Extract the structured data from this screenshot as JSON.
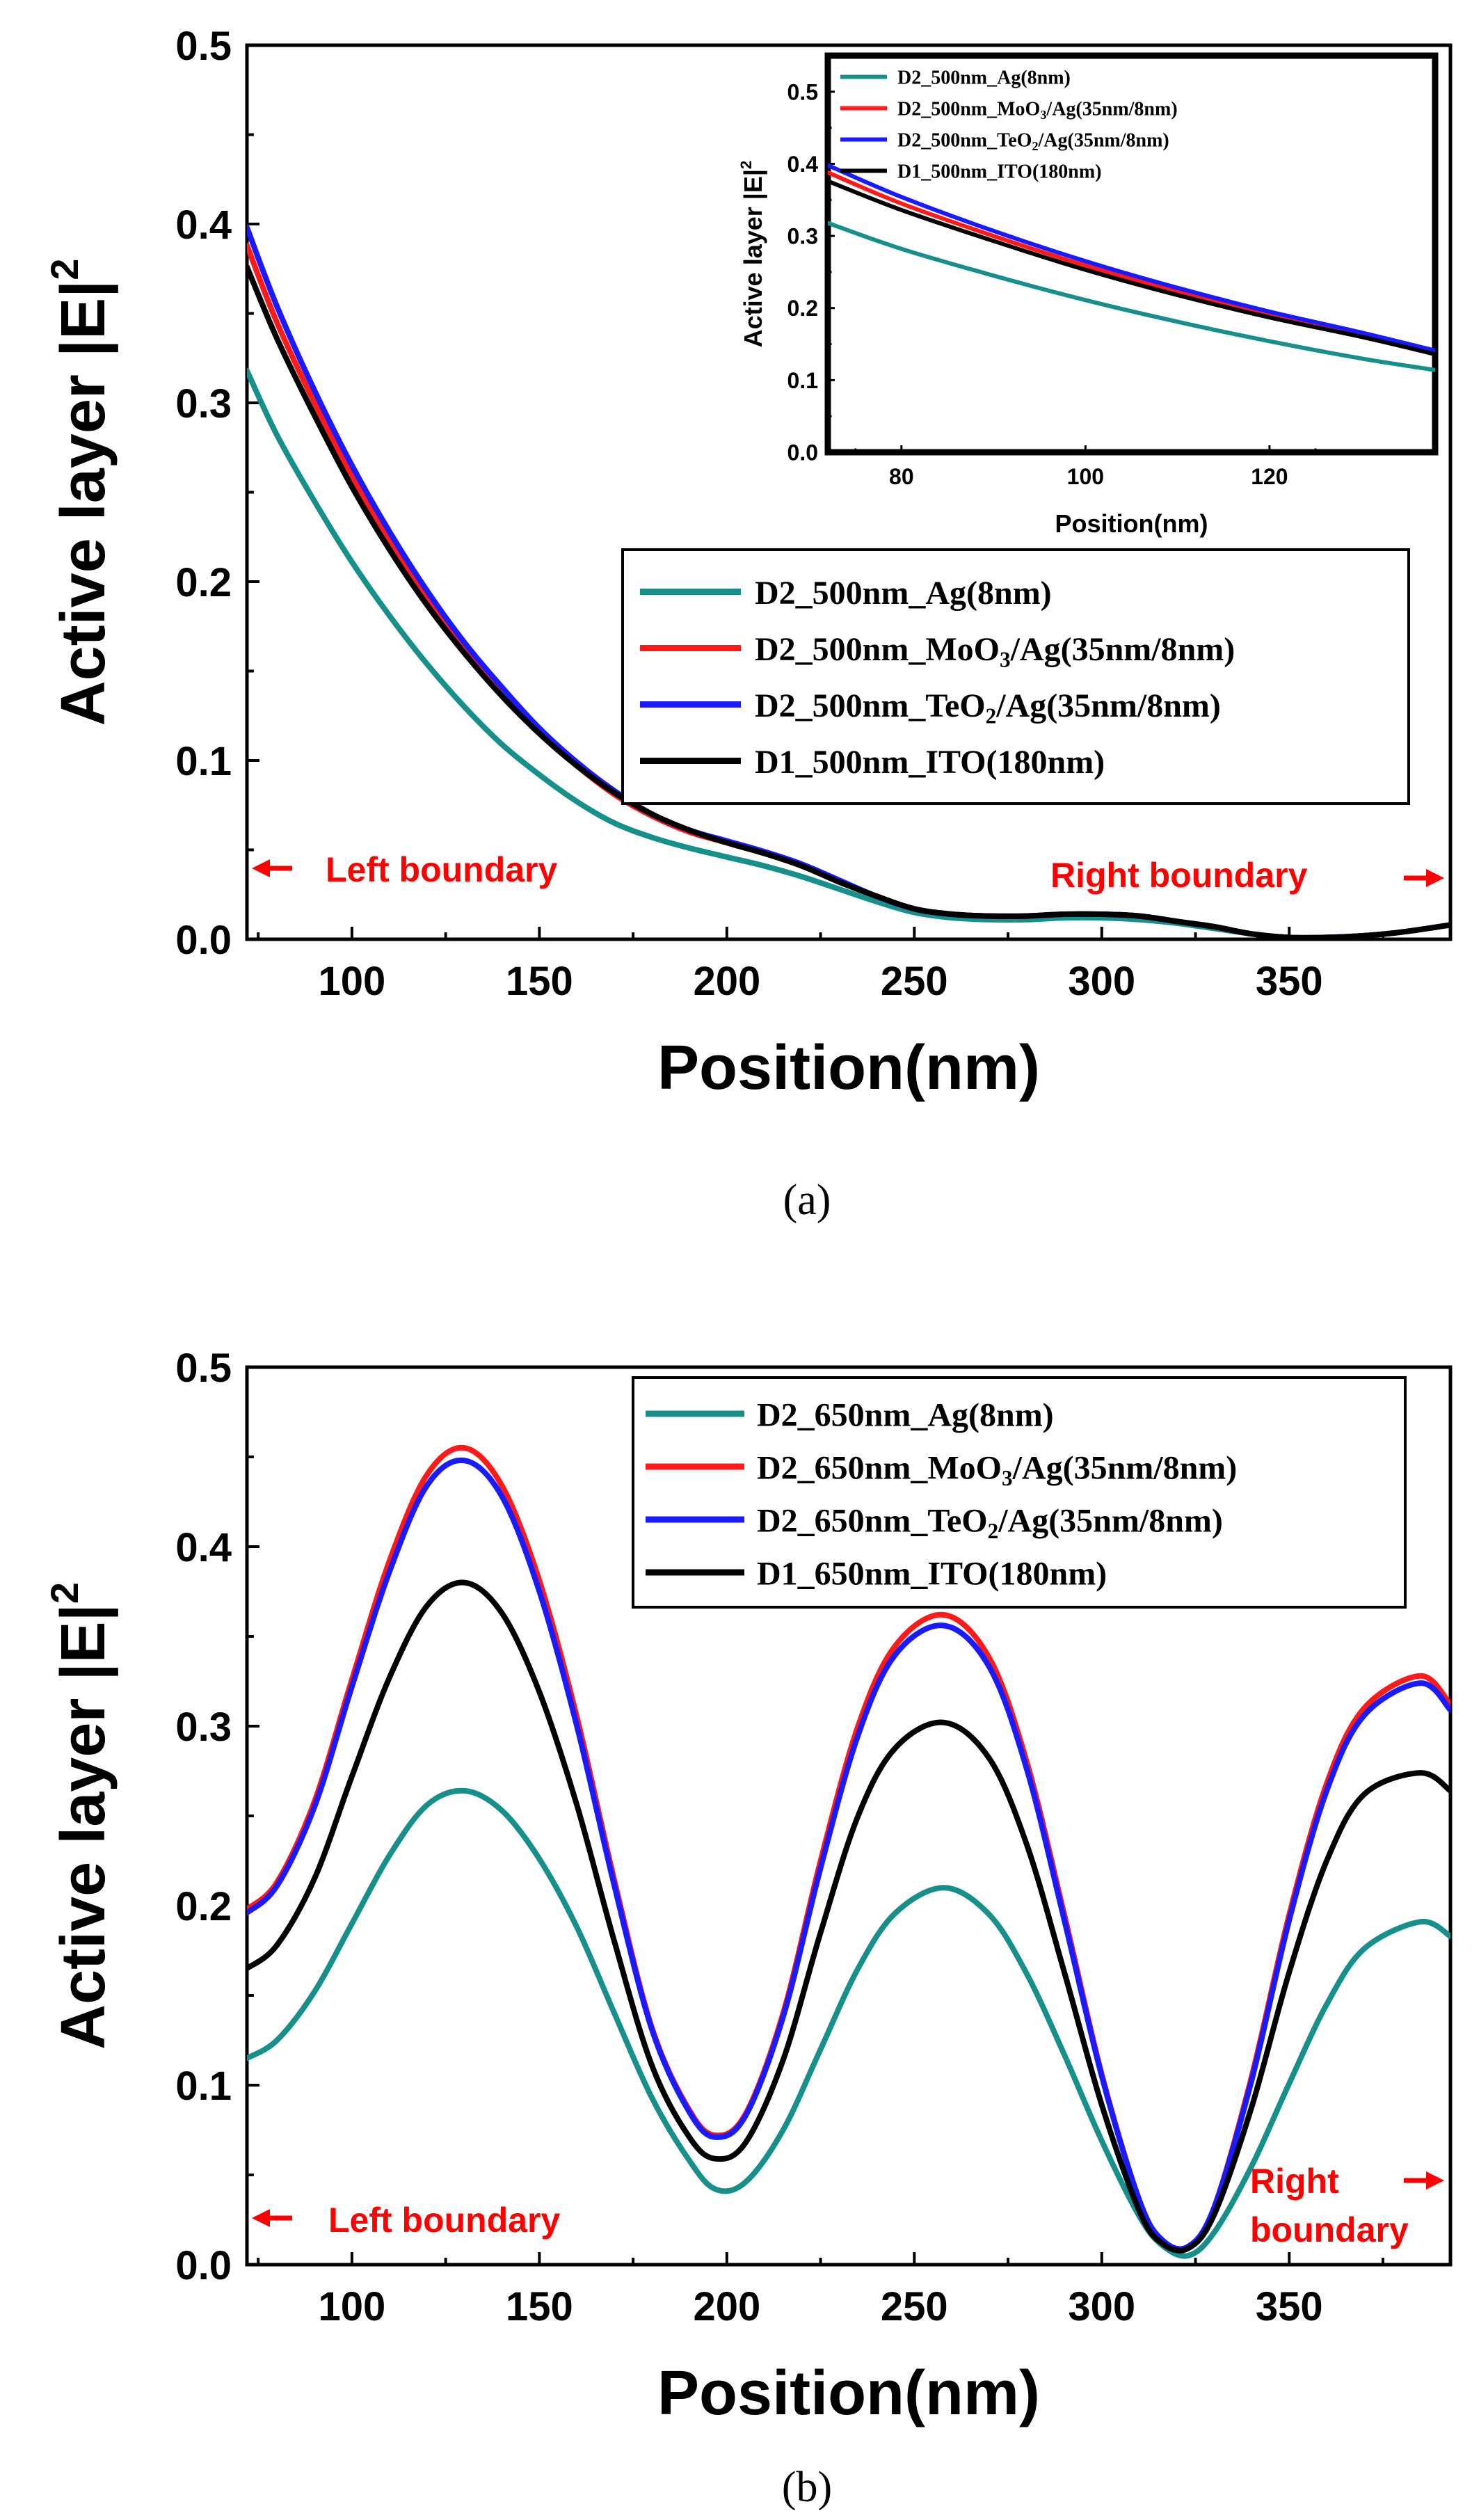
{
  "chart_data": [
    {
      "id": "a",
      "type": "line",
      "caption": "(a)",
      "xlabel": "Position(nm)",
      "ylabel_main": "Active layer |E|",
      "ylabel_sup": "2",
      "xlim": [
        72,
        393
      ],
      "ylim": [
        0.0,
        0.5
      ],
      "xticks": [
        100,
        150,
        200,
        250,
        300,
        350
      ],
      "xtick_labels": [
        "100",
        "150",
        "200",
        "250",
        "300",
        "350"
      ],
      "yticks": [
        0.0,
        0.1,
        0.2,
        0.3,
        0.4,
        0.5
      ],
      "ytick_labels": [
        "0.0",
        "0.1",
        "0.2",
        "0.3",
        "0.4",
        "0.5"
      ],
      "annotations": [
        {
          "text": "Left boundary",
          "arrow": "left"
        },
        {
          "text": "Right boundary",
          "arrow": "right"
        }
      ],
      "legend_position": "right",
      "series": [
        {
          "name": "D2_500nm_Ag(8nm)",
          "label_plain": "D2_500nm_Ag(8nm)",
          "color": "#178f8a",
          "x": [
            72,
            80,
            90,
            100,
            110,
            120,
            130,
            140,
            150,
            160,
            170,
            180,
            190,
            200,
            210,
            220,
            230,
            240,
            250,
            260,
            270,
            280,
            290,
            300,
            310,
            320,
            330,
            340,
            350,
            360,
            370,
            380,
            393
          ],
          "y": [
            0.318,
            0.282,
            0.245,
            0.211,
            0.181,
            0.154,
            0.13,
            0.109,
            0.092,
            0.077,
            0.065,
            0.057,
            0.051,
            0.046,
            0.041,
            0.035,
            0.028,
            0.021,
            0.015,
            0.012,
            0.011,
            0.011,
            0.012,
            0.012,
            0.011,
            0.009,
            0.006,
            0.003,
            0.001,
            0.001,
            0.002,
            0.004,
            0.008
          ]
        },
        {
          "name": "D2_500nm_MoO3/Ag(35nm/8nm)",
          "label_plain": "D2_500nm_MoO",
          "label_sub": "3",
          "label_rest": "/Ag(35nm/8nm)",
          "color": "#ff1a1a",
          "x": [
            72,
            80,
            90,
            100,
            110,
            120,
            130,
            140,
            150,
            160,
            170,
            180,
            190,
            200,
            210,
            220,
            230,
            240,
            250,
            260,
            270,
            280,
            290,
            300,
            310,
            320,
            330,
            340,
            350,
            360,
            370,
            380,
            393
          ],
          "y": [
            0.388,
            0.345,
            0.3,
            0.259,
            0.223,
            0.191,
            0.163,
            0.138,
            0.116,
            0.097,
            0.081,
            0.069,
            0.06,
            0.054,
            0.048,
            0.041,
            0.032,
            0.024,
            0.017,
            0.014,
            0.013,
            0.013,
            0.014,
            0.014,
            0.013,
            0.01,
            0.007,
            0.003,
            0.001,
            0.001,
            0.002,
            0.004,
            0.008
          ]
        },
        {
          "name": "D2_500nm_TeO2/Ag(35nm/8nm)",
          "label_plain": "D2_500nm_TeO",
          "label_sub": "2",
          "label_rest": "/Ag(35nm/8nm)",
          "color": "#1a1aff",
          "x": [
            72,
            80,
            90,
            100,
            110,
            120,
            130,
            140,
            150,
            160,
            170,
            180,
            190,
            200,
            210,
            220,
            230,
            240,
            250,
            260,
            270,
            280,
            290,
            300,
            310,
            320,
            330,
            340,
            350,
            360,
            370,
            380,
            393
          ],
          "y": [
            0.398,
            0.354,
            0.307,
            0.265,
            0.228,
            0.195,
            0.166,
            0.141,
            0.118,
            0.099,
            0.083,
            0.07,
            0.061,
            0.055,
            0.049,
            0.042,
            0.033,
            0.024,
            0.017,
            0.014,
            0.013,
            0.013,
            0.014,
            0.014,
            0.013,
            0.01,
            0.007,
            0.003,
            0.001,
            0.001,
            0.002,
            0.004,
            0.008
          ]
        },
        {
          "name": "D1_500nm_ITO(180nm)",
          "label_plain": "D1_500nm_ITO(180nm)",
          "color": "#000000",
          "x": [
            72,
            80,
            90,
            100,
            110,
            120,
            130,
            140,
            150,
            160,
            170,
            180,
            190,
            200,
            210,
            220,
            230,
            240,
            250,
            260,
            270,
            280,
            290,
            300,
            310,
            320,
            330,
            340,
            350,
            360,
            370,
            380,
            393
          ],
          "y": [
            0.376,
            0.336,
            0.293,
            0.253,
            0.218,
            0.187,
            0.16,
            0.136,
            0.115,
            0.097,
            0.082,
            0.07,
            0.061,
            0.054,
            0.048,
            0.041,
            0.032,
            0.024,
            0.017,
            0.014,
            0.013,
            0.013,
            0.014,
            0.014,
            0.013,
            0.01,
            0.007,
            0.003,
            0.001,
            0.001,
            0.002,
            0.004,
            0.008
          ]
        }
      ]
    },
    {
      "id": "a-inset",
      "type": "line",
      "xlabel": "Position(nm)",
      "ylabel_main": "Active layer |E|",
      "ylabel_sup": "2",
      "xlim": [
        72,
        138
      ],
      "ylim": [
        0.0,
        0.55
      ],
      "xticks": [
        80,
        100,
        120
      ],
      "xtick_labels": [
        "80",
        "100",
        "120"
      ],
      "yticks": [
        0.0,
        0.1,
        0.2,
        0.3,
        0.4,
        0.5
      ],
      "ytick_labels": [
        "0.0",
        "0.1",
        "0.2",
        "0.3",
        "0.4",
        "0.5"
      ],
      "legend_position": "top-left",
      "series": [
        {
          "name": "D2_500nm_Ag(8nm)",
          "label_plain": "D2_500nm_Ag(8nm)",
          "color": "#178f8a",
          "x": [
            72,
            80,
            90,
            100,
            110,
            120,
            130,
            138
          ],
          "y": [
            0.318,
            0.282,
            0.245,
            0.211,
            0.181,
            0.154,
            0.13,
            0.114
          ]
        },
        {
          "name": "D2_500nm_MoO3/Ag(35nm/8nm)",
          "label_plain": "D2_500nm_MoO",
          "label_sub": "3",
          "label_rest": "/Ag(35nm/8nm)",
          "color": "#ff1a1a",
          "x": [
            72,
            80,
            90,
            100,
            110,
            120,
            130,
            138
          ],
          "y": [
            0.388,
            0.345,
            0.3,
            0.259,
            0.223,
            0.191,
            0.163,
            0.139
          ]
        },
        {
          "name": "D2_500nm_TeO2/Ag(35nm/8nm)",
          "label_plain": "D2_500nm_TeO",
          "label_sub": "2",
          "label_rest": "/Ag(35nm/8nm)",
          "color": "#1a1aff",
          "x": [
            72,
            80,
            90,
            100,
            110,
            120,
            130,
            138
          ],
          "y": [
            0.398,
            0.354,
            0.307,
            0.265,
            0.228,
            0.195,
            0.166,
            0.141
          ]
        },
        {
          "name": "D1_500nm_ITO(180nm)",
          "label_plain": "D1_500nm_ITO(180nm)",
          "color": "#000000",
          "x": [
            72,
            80,
            90,
            100,
            110,
            120,
            130,
            138
          ],
          "y": [
            0.376,
            0.336,
            0.293,
            0.253,
            0.218,
            0.187,
            0.16,
            0.136
          ]
        }
      ]
    },
    {
      "id": "b",
      "type": "line",
      "caption": "(b)",
      "xlabel": "Position(nm)",
      "ylabel_main": "Active layer |E|",
      "ylabel_sup": "2",
      "xlim": [
        72,
        393
      ],
      "ylim": [
        0.0,
        0.5
      ],
      "xticks": [
        100,
        150,
        200,
        250,
        300,
        350
      ],
      "xtick_labels": [
        "100",
        "150",
        "200",
        "250",
        "300",
        "350"
      ],
      "yticks": [
        0.0,
        0.1,
        0.2,
        0.3,
        0.4,
        0.5
      ],
      "ytick_labels": [
        "0.0",
        "0.1",
        "0.2",
        "0.3",
        "0.4",
        "0.5"
      ],
      "annotations": [
        {
          "text": "Left boundary",
          "arrow": "left"
        },
        {
          "text": "Right",
          "text2": "boundary",
          "arrow": "right"
        }
      ],
      "legend_position": "top-right",
      "series": [
        {
          "name": "D2_650nm_Ag(8nm)",
          "label_plain": "D2_650nm_Ag(8nm)",
          "color": "#178f8a",
          "x": [
            72,
            80,
            90,
            100,
            110,
            120,
            130,
            140,
            150,
            160,
            170,
            180,
            190,
            197,
            205,
            215,
            225,
            235,
            245,
            258,
            270,
            280,
            290,
            300,
            310,
            316,
            323,
            330,
            340,
            350,
            360,
            370,
            385,
            393
          ],
          "y": [
            0.115,
            0.125,
            0.152,
            0.19,
            0.228,
            0.256,
            0.264,
            0.253,
            0.226,
            0.188,
            0.14,
            0.093,
            0.058,
            0.042,
            0.046,
            0.075,
            0.12,
            0.165,
            0.196,
            0.21,
            0.195,
            0.162,
            0.117,
            0.069,
            0.027,
            0.011,
            0.005,
            0.018,
            0.055,
            0.101,
            0.145,
            0.176,
            0.191,
            0.183
          ]
        },
        {
          "name": "D2_650nm_MoO3/Ag(35nm/8nm)",
          "label_plain": "D2_650nm_MoO",
          "label_sub": "3",
          "label_rest": "/Ag(35nm/8nm)",
          "color": "#ff1a1a",
          "x": [
            72,
            80,
            90,
            100,
            110,
            120,
            130,
            140,
            150,
            160,
            170,
            180,
            190,
            197,
            205,
            215,
            225,
            235,
            245,
            258,
            270,
            280,
            290,
            300,
            310,
            316,
            323,
            330,
            340,
            350,
            360,
            370,
            385,
            393
          ],
          "y": [
            0.198,
            0.213,
            0.258,
            0.326,
            0.392,
            0.44,
            0.455,
            0.434,
            0.381,
            0.305,
            0.214,
            0.132,
            0.086,
            0.072,
            0.084,
            0.14,
            0.225,
            0.3,
            0.345,
            0.362,
            0.338,
            0.28,
            0.195,
            0.106,
            0.036,
            0.014,
            0.01,
            0.032,
            0.105,
            0.195,
            0.268,
            0.31,
            0.328,
            0.312
          ]
        },
        {
          "name": "D2_650nm_TeO2/Ag(35nm/8nm)",
          "label_plain": "D2_650nm_TeO",
          "label_sub": "2",
          "label_rest": "/Ag(35nm/8nm)",
          "color": "#1a1aff",
          "x": [
            72,
            80,
            90,
            100,
            110,
            120,
            130,
            140,
            150,
            160,
            170,
            180,
            190,
            197,
            205,
            215,
            225,
            235,
            245,
            258,
            270,
            280,
            290,
            300,
            310,
            316,
            323,
            330,
            340,
            350,
            360,
            370,
            385,
            393
          ],
          "y": [
            0.196,
            0.211,
            0.255,
            0.322,
            0.386,
            0.434,
            0.448,
            0.428,
            0.375,
            0.3,
            0.211,
            0.131,
            0.085,
            0.071,
            0.083,
            0.138,
            0.221,
            0.295,
            0.34,
            0.356,
            0.333,
            0.276,
            0.192,
            0.105,
            0.036,
            0.014,
            0.01,
            0.032,
            0.103,
            0.192,
            0.264,
            0.306,
            0.324,
            0.309
          ]
        },
        {
          "name": "D1_650nm_ITO(180nm)",
          "label_plain": "D1_650nm_ITO(180nm)",
          "color": "#000000",
          "x": [
            72,
            80,
            90,
            100,
            110,
            120,
            130,
            140,
            150,
            160,
            170,
            180,
            190,
            197,
            205,
            215,
            225,
            235,
            245,
            258,
            270,
            280,
            290,
            300,
            310,
            316,
            323,
            330,
            340,
            350,
            360,
            370,
            385,
            393
          ],
          "y": [
            0.165,
            0.178,
            0.215,
            0.272,
            0.327,
            0.367,
            0.38,
            0.363,
            0.319,
            0.256,
            0.18,
            0.111,
            0.071,
            0.059,
            0.068,
            0.114,
            0.185,
            0.25,
            0.288,
            0.302,
            0.282,
            0.234,
            0.163,
            0.089,
            0.03,
            0.012,
            0.009,
            0.028,
            0.088,
            0.163,
            0.225,
            0.262,
            0.274,
            0.264
          ]
        }
      ]
    }
  ]
}
